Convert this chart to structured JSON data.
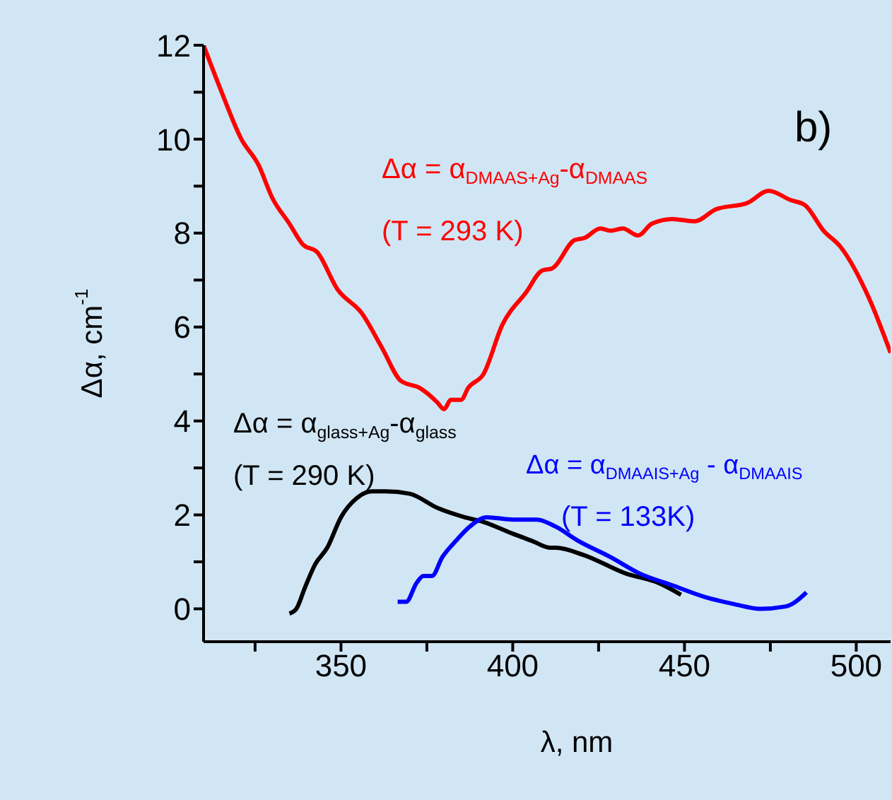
{
  "chart_data": {
    "type": "line",
    "xlabel": "λ, nm",
    "ylabel": "Δα, cm$^{-1}$",
    "annotations": [
      "b)",
      "Δα = α$_{DMAAS+Ag}$-α$_{DMAAS}$",
      "(T = 293 K)",
      "Δα = α$_{glass+Ag}$-α$_{glass}$",
      "(T = 290 K)",
      "Δα = α$_{DMAAIS+Ag}$ - α$_{DMAAIS}$",
      "(T = 133K)"
    ],
    "series": [
      {
        "color": "#ff0000",
        "x": [
          310,
          315,
          321,
          326,
          330,
          335,
          339,
          343,
          349,
          356,
          362,
          367.5,
          373,
          378,
          380,
          382,
          385,
          387,
          391.5,
          397,
          404,
          408.5,
          411.5,
          418,
          421,
          425.5,
          428.5,
          432,
          436.5,
          440.5,
          446.5,
          453,
          459,
          468.5,
          474.5,
          481,
          485,
          490.5,
          495.5,
          503.5,
          510
        ],
        "values": [
          12,
          11.05,
          10,
          9.45,
          8.75,
          8.2,
          7.75,
          7.6,
          6.8,
          6.3,
          5.55,
          4.85,
          4.7,
          4.4,
          4.25,
          4.45,
          4.45,
          4.7,
          5,
          6.05,
          6.75,
          7.2,
          7.25,
          7.85,
          7.9,
          8.1,
          8.05,
          8.1,
          7.95,
          8.2,
          8.3,
          8.25,
          8.5,
          8.65,
          8.9,
          8.7,
          8.6,
          8.05,
          7.7,
          6.65,
          5.45
        ]
      },
      {
        "color": "#000000",
        "x": [
          335,
          337,
          339.5,
          342.5,
          346,
          350,
          354.5,
          359,
          363,
          370,
          378,
          386,
          391.5,
          400,
          405.5,
          411,
          412.5,
          420.5,
          433,
          442.5,
          449
        ],
        "values": [
          -0.1,
          0,
          0.45,
          0.95,
          1.3,
          1.95,
          2.35,
          2.5,
          2.5,
          2.45,
          2.15,
          1.95,
          1.85,
          1.6,
          1.45,
          1.3,
          1.3,
          1.15,
          0.75,
          0.55,
          0.3
        ]
      },
      {
        "color": "#0000ff",
        "x": [
          366.5,
          369,
          372,
          374,
          376.5,
          379.5,
          383.5,
          387.5,
          392.5,
          400,
          407,
          412.5,
          419,
          428.5,
          437,
          446.5,
          456,
          464.5,
          472,
          479.5,
          485.5
        ],
        "values": [
          0.15,
          0.15,
          0.55,
          0.7,
          0.7,
          1.1,
          1.45,
          1.75,
          1.95,
          1.9,
          1.9,
          1.75,
          1.45,
          1.1,
          0.75,
          0.5,
          0.25,
          0.1,
          0,
          0.05,
          0.35
        ]
      }
    ],
    "xlim": [
      310,
      510
    ],
    "xticks": [
      {
        "value": 325,
        "label": null
      },
      350,
      {
        "value": 375,
        "label": null
      },
      400,
      {
        "value": 425,
        "label": null
      },
      450,
      {
        "value": 475,
        "label": null
      },
      500
    ],
    "ylim": [
      -0.7,
      12
    ],
    "yticks": [
      0,
      {
        "value": 1,
        "label": null
      },
      2,
      {
        "value": 3,
        "label": null
      },
      4,
      {
        "value": 5,
        "label": null
      },
      6,
      {
        "value": 7,
        "label": null
      },
      8,
      {
        "value": 9,
        "label": null
      },
      10,
      {
        "value": 11,
        "label": null
      },
      12
    ],
    "grid": false,
    "marker": "none",
    "line_style": "solid"
  }
}
